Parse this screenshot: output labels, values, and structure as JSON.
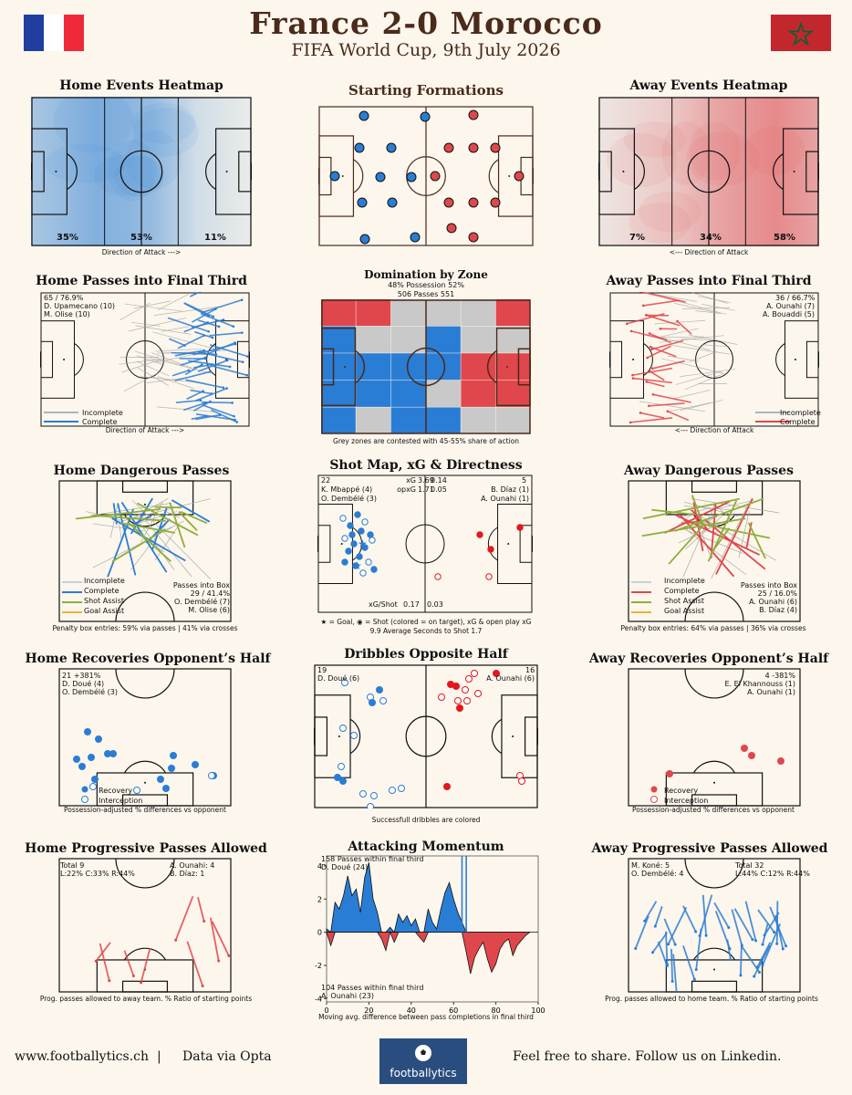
{
  "header": {
    "title": "France 2-0 Morocco",
    "subtitle": "FIFA World Cup, 9th July 2026"
  },
  "colors": {
    "home": "#2a7dd4",
    "away": "#e0474c",
    "brown": "#4a2a1a",
    "grey": "#c9c9c9"
  },
  "panels": {
    "home_heatmap": {
      "title": "Home Events Heatmap",
      "caption": "Direction of Attack --->",
      "thirds": [
        "35%",
        "53%",
        "11%"
      ]
    },
    "formations": {
      "title": "Starting Formations"
    },
    "away_heatmap": {
      "title": "Away Events Heatmap",
      "caption": "<--- Direction of Attack",
      "thirds": [
        "7%",
        "34%",
        "58%"
      ]
    },
    "home_passes_final_third": {
      "title": "Home Passes into Final Third",
      "stat": "65 / 76.9%",
      "players": [
        "D. Upamecano (10)",
        "M. Olise (10)"
      ],
      "legend": [
        "Incomplete",
        "Complete"
      ],
      "caption": "Direction of Attack --->"
    },
    "domination": {
      "title": "Domination by Zone",
      "possession": "48% Possession 52%",
      "passes": "506 Passes 551",
      "caption": "Grey zones are contested with 45-55% share of action",
      "grid": [
        [
          "A",
          "A",
          "G",
          "G",
          "G",
          "A"
        ],
        [
          "H",
          "G",
          "G",
          "H",
          "G",
          "G"
        ],
        [
          "H",
          "H",
          "H",
          "H",
          "A",
          "A"
        ],
        [
          "H",
          "H",
          "H",
          "G",
          "A",
          "A"
        ],
        [
          "H",
          "G",
          "H",
          "H",
          "G",
          "G"
        ]
      ]
    },
    "away_passes_final_third": {
      "title": "Away Passes into Final Third",
      "stat": "36 / 66.7%",
      "players": [
        "A. Ounahi (7)",
        "A. Bouaddi (5)"
      ],
      "legend": [
        "Incomplete",
        "Complete"
      ],
      "caption": "<--- Direction of Attack"
    },
    "home_dangerous": {
      "title": "Home Dangerous Passes",
      "legend": [
        "Incomplete",
        "Complete",
        "Shot Assist",
        "Goal Assist"
      ],
      "box_title": "Passes into Box",
      "box_stat": "29 / 41.4%",
      "players": [
        "O. Dembélé (7)",
        "M. Olise (6)"
      ],
      "caption": "Penalty box entries: 59% via passes | 41% via crosses"
    },
    "shot_map": {
      "title": "Shot Map, xG & Directness",
      "home_shots": "22",
      "away_shots": "5",
      "xg_label": "xG",
      "home_xg": "3.69",
      "away_xg": "0.14",
      "opxg_label": "opxG",
      "home_opxg": "1.71",
      "away_opxg": "0.05",
      "home_players": [
        "K. Mbappé (4)",
        "O. Dembélé (3)"
      ],
      "away_players": [
        "B. Díaz (1)",
        "A. Ounahi (1)"
      ],
      "xg_shot_label": "xG/Shot",
      "home_xg_shot": "0.17",
      "away_xg_shot": "0.03",
      "caption1": "★ = Goal, ◉ = Shot (colored = on target), xG & open play xG",
      "caption2": "9.9 Average Seconds to Shot 1.7"
    },
    "away_dangerous": {
      "title": "Away Dangerous Passes",
      "legend": [
        "Incomplete",
        "Complete",
        "Shot Assist",
        "Goal Assist"
      ],
      "box_title": "Passes into Box",
      "box_stat": "25 / 16.0%",
      "players": [
        "A. Ounahi (6)",
        "B. Díaz (4)"
      ],
      "caption": "Penalty box entries: 64% via passes | 36% via crosses"
    },
    "home_recoveries": {
      "title": "Home Recoveries Opponent’s Half",
      "stat": "21 +381%",
      "players": [
        "D. Doué (4)",
        "O. Dembélé (3)"
      ],
      "legend": [
        "Recovery",
        "Interception"
      ],
      "caption": "Possession-adjusted % differences vs opponent"
    },
    "dribbles": {
      "title": "Dribbles Opposite Half",
      "home_count": "19",
      "home_player": "D. Doué (6)",
      "away_count": "16",
      "away_player": "A. Ounahi (6)",
      "caption": "Successfull dribbles are colored"
    },
    "away_recoveries": {
      "title": "Away Recoveries Opponent’s Half",
      "stat": "4 -381%",
      "players": [
        "E. El Khannouss (1)",
        "A. Ounahi (1)"
      ],
      "legend": [
        "Recovery",
        "Interception"
      ],
      "caption": "Possession-adjusted % differences vs opponent"
    },
    "home_prog_allowed": {
      "title": "Home Progressive Passes Allowed",
      "total": "Total 9",
      "ratio": "L:22% C:33% R:44%",
      "players": [
        "A. Ounahi: 4",
        "B. Díaz: 1"
      ],
      "caption": "Prog. passes allowed to away team. % Ratio of starting points"
    },
    "momentum": {
      "title": "Attacking Momentum",
      "top_label": "158 Passes within final third",
      "top_player": "D. Doué (24)",
      "bottom_label": "104 Passes within final third",
      "bottom_player": "A. Ounahi (23)",
      "caption": "Moving avg. difference between pass completions in final third"
    },
    "away_prog_allowed": {
      "title": "Away Progressive Passes Allowed",
      "total": "Total 32",
      "ratio": "L:44% C:12% R:44%",
      "players": [
        "M. Koné: 5",
        "O. Dembélé: 4"
      ],
      "caption": "Prog. passes allowed to home team. % Ratio of starting points"
    }
  },
  "chart_data": {
    "type": "area",
    "title": "Attacking Momentum",
    "xlabel": "Moving avg. difference between pass completions in final third",
    "xlim": [
      0,
      100
    ],
    "ylim": [
      -4.2,
      4.6
    ],
    "xticks": [
      0,
      20,
      40,
      60,
      80,
      100
    ],
    "yticks": [
      4,
      2,
      0,
      -2,
      -4
    ],
    "goal_minutes": [
      64,
      66
    ],
    "x": [
      0,
      2,
      4,
      6,
      8,
      10,
      12,
      14,
      16,
      18,
      20,
      22,
      24,
      26,
      28,
      30,
      32,
      34,
      36,
      38,
      40,
      42,
      44,
      46,
      48,
      50,
      52,
      54,
      56,
      58,
      60,
      62,
      64,
      66,
      68,
      70,
      72,
      74,
      76,
      78,
      80,
      82,
      84,
      86,
      88,
      90,
      92,
      94,
      96
    ],
    "values": [
      0.2,
      -0.8,
      1.8,
      1.4,
      2.2,
      3.4,
      2.2,
      2.6,
      1.2,
      3.3,
      4.2,
      2.0,
      1.2,
      -0.4,
      -1.1,
      0.3,
      -0.6,
      1.1,
      0.6,
      1.0,
      0.4,
      0.8,
      -0.3,
      -0.6,
      1.4,
      0.6,
      0.2,
      1.4,
      2.4,
      3.0,
      2.0,
      1.2,
      0.6,
      -1.2,
      -2.5,
      -1.5,
      -1.0,
      -0.6,
      -1.6,
      -2.4,
      -1.9,
      -1.0,
      -0.6,
      -0.4,
      -1.4,
      -0.8,
      -0.5,
      -0.2,
      0.0
    ],
    "series": [
      {
        "name": "France",
        "values_sign": "positive"
      },
      {
        "name": "Morocco",
        "values_sign": "negative"
      }
    ]
  },
  "footer": {
    "site": "www.footballytics.ch",
    "sep": "|",
    "source": "Data via Opta",
    "logo": "footballytics",
    "share": "Feel free to share. Follow us on Linkedin."
  }
}
